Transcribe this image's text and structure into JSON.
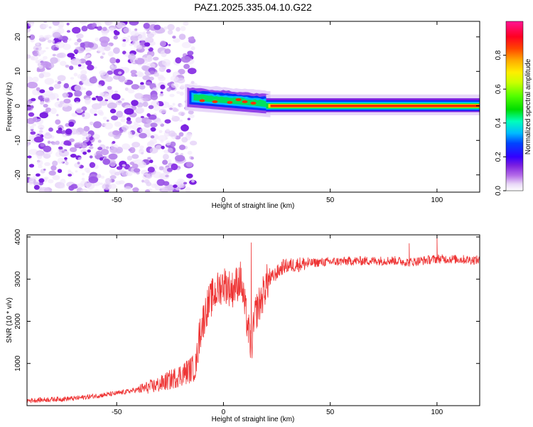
{
  "figure_title": "PAZ1.2025.335.04.10.G22",
  "chart_data": [
    {
      "type": "heatmap",
      "title": "PAZ1.2025.335.04.10.G22",
      "xlabel": "Height of straight line (km)",
      "ylabel": "Frequency (Hz)",
      "xlim": [
        -92,
        120
      ],
      "ylim": [
        -25,
        24.5
      ],
      "xticks": [
        -50,
        0,
        50,
        100
      ],
      "yticks": [
        -20,
        -10,
        0,
        10,
        20
      ],
      "regions": [
        {
          "name": "noise",
          "x_range": [
            -92,
            -16
          ],
          "freq_range": [
            -25,
            24.5
          ],
          "amplitude_range": [
            0.0,
            0.12
          ]
        },
        {
          "name": "transition",
          "x_range": [
            -18,
            22
          ],
          "freq_center": [
            2.5,
            0.5
          ],
          "bandwidth_hz": 3.5,
          "amplitude_range": [
            0.2,
            0.85
          ]
        },
        {
          "name": "stable_signal",
          "x_range": [
            22,
            120
          ],
          "freq_center": 0,
          "bandwidth_hz": 2,
          "amplitude_range": [
            0.8,
            1.0
          ]
        }
      ]
    },
    {
      "type": "colorbar",
      "label": "Normalized spectral amplitude",
      "range": [
        0,
        1
      ],
      "ticks": [
        "0.0",
        "0.2",
        "0.4",
        "0.6",
        "0.8"
      ],
      "colormap": "gist_ncar-like"
    },
    {
      "type": "line",
      "xlabel": "Height of straight line (km)",
      "ylabel": "SNR (10 * v/v)",
      "xlim": [
        -92,
        120
      ],
      "ylim": [
        0,
        4050
      ],
      "xticks": [
        -50,
        0,
        50,
        100
      ],
      "yticks": [
        1000,
        2000,
        3000,
        4000
      ],
      "color": "#ee3333",
      "series": [
        {
          "name": "SNR",
          "x": [
            -92,
            -80,
            -70,
            -60,
            -50,
            -40,
            -30,
            -22,
            -18,
            -13,
            -11,
            -9,
            -8,
            -5,
            0,
            4,
            8,
            12,
            13,
            15,
            18,
            20,
            25,
            28,
            35,
            45,
            60,
            80,
            87,
            95,
            100,
            110,
            120
          ],
          "y": [
            120,
            150,
            170,
            230,
            290,
            380,
            500,
            680,
            780,
            920,
            1750,
            2100,
            2300,
            2600,
            2900,
            2750,
            3000,
            1700,
            1350,
            2200,
            2550,
            2900,
            3150,
            3300,
            3350,
            3400,
            3430,
            3440,
            3400,
            3450,
            3480,
            3470,
            3450
          ]
        }
      ],
      "annotations": [
        {
          "x": 13,
          "y": 3870,
          "note": "spike"
        },
        {
          "x": 100,
          "y": 4050,
          "note": "spike"
        },
        {
          "x": 87,
          "y": 3850,
          "note": "spike"
        }
      ]
    }
  ]
}
